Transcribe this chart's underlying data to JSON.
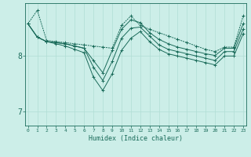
{
  "xlabel": "Humidex (Indice chaleur)",
  "background_color": "#cceee8",
  "grid_color": "#b0ddd4",
  "line_color": "#1a6b5a",
  "x_ticks": [
    0,
    1,
    2,
    3,
    4,
    5,
    6,
    7,
    8,
    9,
    10,
    11,
    12,
    13,
    14,
    15,
    16,
    17,
    18,
    19,
    20,
    21,
    22,
    23
  ],
  "ylim": [
    6.75,
    8.95
  ],
  "yticks": [
    7,
    8
  ],
  "series": [
    [
      8.58,
      8.82,
      8.28,
      8.26,
      8.24,
      8.22,
      8.2,
      8.18,
      8.16,
      8.14,
      8.55,
      8.72,
      8.55,
      8.48,
      8.42,
      8.36,
      8.3,
      8.24,
      8.18,
      8.12,
      8.08,
      8.16,
      8.16,
      8.72
    ],
    [
      8.58,
      8.34,
      8.26,
      8.24,
      8.22,
      8.18,
      8.14,
      7.92,
      7.7,
      8.1,
      8.48,
      8.65,
      8.6,
      8.42,
      8.3,
      8.22,
      8.16,
      8.12,
      8.08,
      8.04,
      8.01,
      8.14,
      8.14,
      8.58
    ],
    [
      8.58,
      8.34,
      8.26,
      8.24,
      8.22,
      8.18,
      8.14,
      7.8,
      7.56,
      7.9,
      8.32,
      8.5,
      8.52,
      8.36,
      8.2,
      8.12,
      8.08,
      8.04,
      8.0,
      7.96,
      7.92,
      8.08,
      8.08,
      8.48
    ],
    [
      8.58,
      8.34,
      8.26,
      8.22,
      8.18,
      8.12,
      8.06,
      7.62,
      7.38,
      7.68,
      8.1,
      8.32,
      8.44,
      8.26,
      8.12,
      8.04,
      8.0,
      7.96,
      7.92,
      7.88,
      7.84,
      8.0,
      8.0,
      8.4
    ]
  ]
}
